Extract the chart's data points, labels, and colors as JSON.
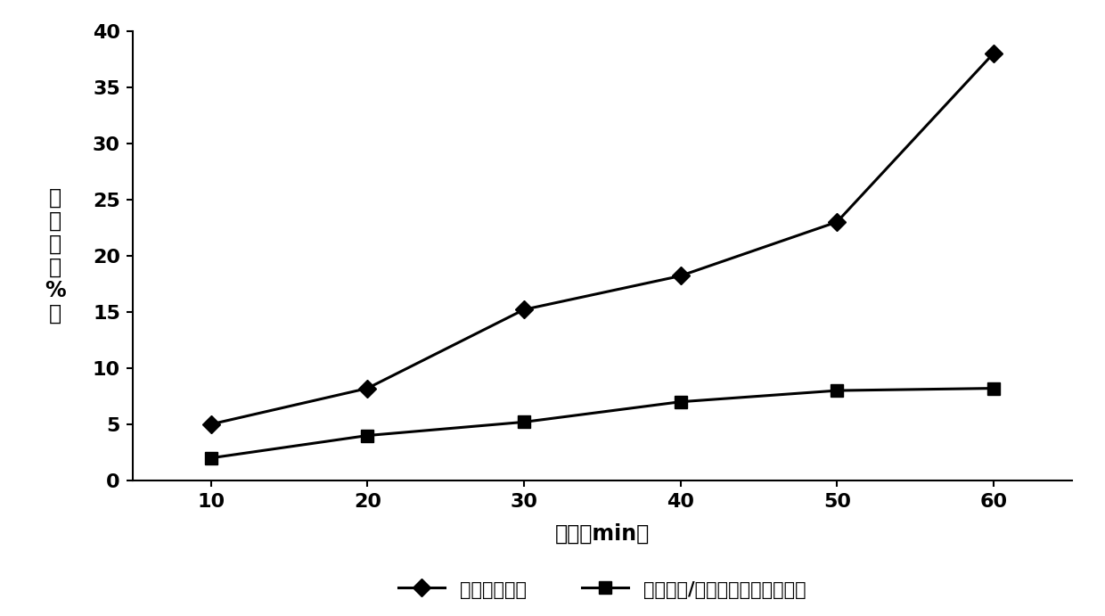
{
  "x": [
    10,
    20,
    30,
    40,
    50,
    60
  ],
  "series1_y": [
    5.0,
    8.2,
    15.2,
    18.2,
    23.0,
    38.0
  ],
  "series2_y": [
    2.0,
    4.0,
    5.2,
    7.0,
    8.0,
    8.2
  ],
  "series1_label": "纳米二氧化鉴",
  "series2_label": "二氧化鉴/海藻多糖复合纳米颗粒",
  "xlabel": "时间（min）",
  "ylabel_chars": [
    "降",
    "解",
    "率",
    "（",
    "%",
    "）"
  ],
  "xlim": [
    5,
    65
  ],
  "ylim": [
    0,
    40
  ],
  "yticks": [
    0,
    5,
    10,
    15,
    20,
    25,
    30,
    35,
    40
  ],
  "xticks": [
    10,
    20,
    30,
    40,
    50,
    60
  ],
  "line_color": "#000000",
  "background_color": "#ffffff",
  "marker1": "D",
  "marker2": "s",
  "markersize1": 10,
  "markersize2": 10,
  "linewidth": 2.2,
  "tick_fontsize": 16,
  "label_fontsize": 17,
  "legend_fontsize": 15
}
